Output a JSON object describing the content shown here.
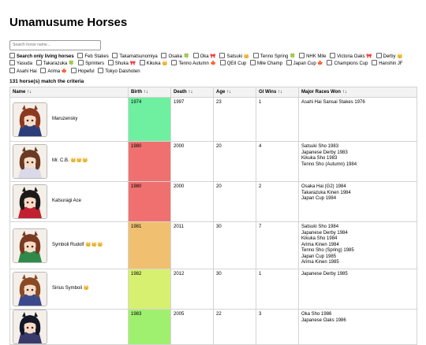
{
  "title": "Umamusume Horses",
  "search": {
    "placeholder": "Search horse name..."
  },
  "filters": [
    {
      "label": "Search only living horses",
      "bold": true
    },
    {
      "label": "Feb Stakes"
    },
    {
      "label": "Takamatsunomiya"
    },
    {
      "label": "Osaka 🍀"
    },
    {
      "label": "Oka 🎀"
    },
    {
      "label": "Satsuki 👑"
    },
    {
      "label": "Tenno Spring 🍀"
    },
    {
      "label": "NHK Mile"
    },
    {
      "label": "Victoria Oaks 🎀"
    },
    {
      "label": "Derby 👑"
    },
    {
      "label": "Yasuda"
    },
    {
      "label": "Takarazuka 🍀"
    },
    {
      "label": "Sprinters"
    },
    {
      "label": "Shuka 🎀"
    },
    {
      "label": "Kikuka 👑"
    },
    {
      "label": "Tenno Autumn 🍁"
    },
    {
      "label": "QEII Cup"
    },
    {
      "label": "Mile Champ"
    },
    {
      "label": "Japan Cup 🍁"
    },
    {
      "label": "Champions Cup"
    },
    {
      "label": "Hanshin JF"
    },
    {
      "label": "Asahi Hai"
    },
    {
      "label": "Arima 🍁"
    },
    {
      "label": "Hopeful"
    },
    {
      "label": "Tokyo Daishoten"
    }
  ],
  "match_text": "131 horse(s) match the criteria",
  "columns": [
    "Name ↑↓",
    "Birth ↑↓",
    "Death ↑↓",
    "Age ↑↓",
    "GI Wins ↑↓",
    "Major Races Won ↑↓"
  ],
  "rows": [
    {
      "name": "Maruzensky",
      "birth": "1974",
      "death": "1997",
      "age": "23",
      "gi_wins": "1",
      "birth_color": "#6ef0a0",
      "hair": "#8b3a1f",
      "dress": "#2c3e7a",
      "races": [
        "Asahi Hai Sansai Stakes 1976"
      ]
    },
    {
      "name": "Mr. C.B. 👑👑👑",
      "birth": "1980",
      "death": "2000",
      "age": "20",
      "gi_wins": "4",
      "birth_color": "#f07070",
      "hair": "#6b3a22",
      "dress": "#d9d9e8",
      "races": [
        "Satsuki Sho 1983",
        "Japanese Derby 1983",
        "Kikuka Sho 1983",
        "Tenno Sho (Autumn) 1984"
      ]
    },
    {
      "name": "Katsuragi Ace",
      "birth": "1980",
      "death": "2000",
      "age": "20",
      "gi_wins": "2",
      "birth_color": "#f07070",
      "hair": "#1e1a1a",
      "dress": "#c02030",
      "races": [
        "Osaka Hai (G2) 1984",
        "Takarazuka Kinen 1984",
        "Japan Cup 1984"
      ]
    },
    {
      "name": "Symboli Rudolf 👑👑👑",
      "birth": "1981",
      "death": "2011",
      "age": "30",
      "gi_wins": "7",
      "birth_color": "#f0c070",
      "hair": "#7a3b22",
      "dress": "#2f8a4a",
      "races": [
        "Satsuki Sho 1984",
        "Japanese Derby 1984",
        "Kikuka Sho 1984",
        "Arima Kinen 1984",
        "Tenno Sho (Spring) 1985",
        "Japan Cup 1985",
        "Arima Kinen 1985"
      ]
    },
    {
      "name": "Sirius Symboli 👑",
      "birth": "1982",
      "death": "2012",
      "age": "30",
      "gi_wins": "1",
      "birth_color": "#d8f070",
      "hair": "#8a4a24",
      "dress": "#3a4a8a",
      "races": [
        "Japanese Derby 1985"
      ]
    },
    {
      "name": "",
      "birth": "1983",
      "death": "2005",
      "age": "22",
      "gi_wins": "3",
      "birth_color": "#a0f070",
      "hair": "#151826",
      "dress": "#3a3a6a",
      "races": [
        "Oka Sho 1986",
        "Japanese Oaks 1986"
      ]
    }
  ]
}
